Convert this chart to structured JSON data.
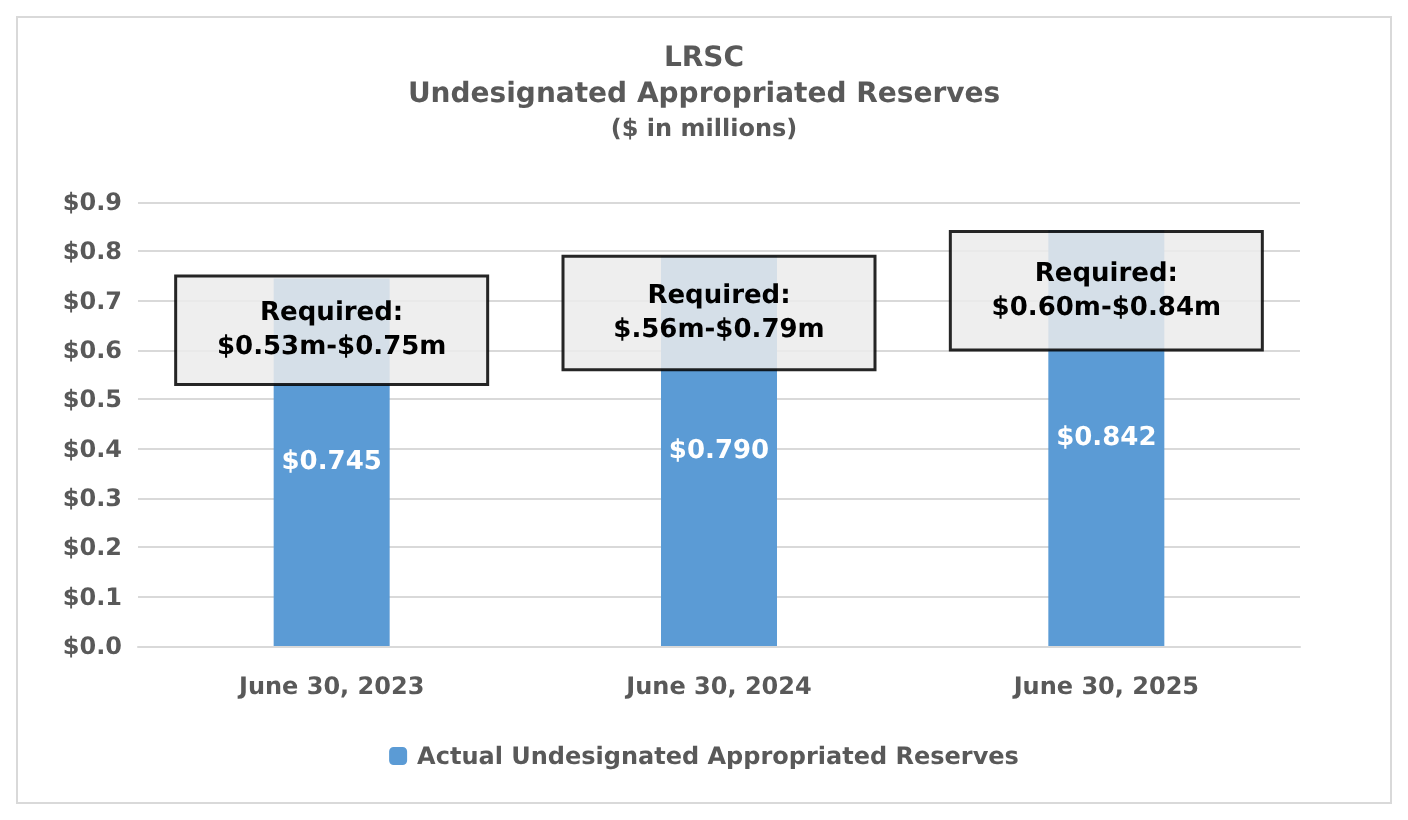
{
  "chart_data": {
    "type": "bar",
    "title": "LRSC\nUndesignated Appropriated Reserves",
    "subtitle": "($ in millions)",
    "categories": [
      "June 30, 2023",
      "June 30, 2024",
      "June 30, 2025"
    ],
    "series": [
      {
        "name": "Actual Undesignated Appropriated Reserves",
        "color": "#5b9bd5",
        "values": [
          0.745,
          0.79,
          0.842
        ],
        "value_labels": [
          "$0.745",
          "$0.790",
          "$0.842"
        ]
      },
      {
        "color": "#ebebeb",
        "base": [
          0.53,
          0.56,
          0.6
        ],
        "values": [
          0.22,
          0.23,
          0.24
        ],
        "value_labels": [
          "Required:\n$0.53m-$0.75m",
          "Required:\n$.56m-$0.79m",
          "Required:\n$0.60m-$0.84m"
        ]
      }
    ],
    "ylim": [
      0,
      0.9
    ],
    "yticks": [
      {
        "value": 0,
        "label": "$0.0"
      },
      {
        "value": 0.1,
        "label": "$0.1"
      },
      {
        "value": 0.2,
        "label": "$0.2"
      },
      {
        "value": 0.3,
        "label": "$0.3"
      },
      {
        "value": 0.4,
        "label": "$0.4"
      },
      {
        "value": 0.5,
        "label": "$0.5"
      },
      {
        "value": 0.6,
        "label": "$0.6"
      },
      {
        "value": 0.7,
        "label": "$0.7"
      },
      {
        "value": 0.8,
        "label": "$0.8"
      },
      {
        "value": 0.9,
        "label": "$0.9"
      }
    ],
    "grid": "y",
    "legend": "bottom"
  }
}
